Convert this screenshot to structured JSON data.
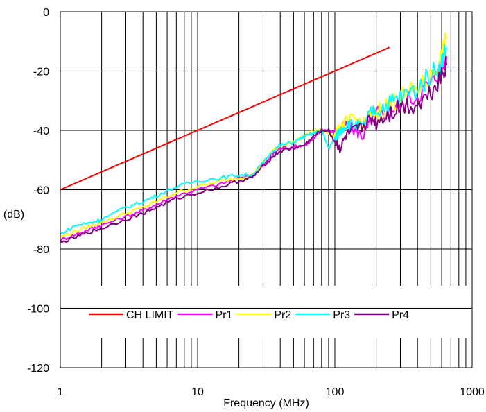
{
  "chart_data": {
    "type": "line",
    "title": "",
    "xlabel": "Frequency (MHz)",
    "ylabel": "(dB)",
    "x_scale": "log",
    "xlim": [
      1,
      1000
    ],
    "ylim": [
      -120,
      0
    ],
    "grid": true,
    "x_ticks": [
      {
        "value": 1,
        "label": "1"
      },
      {
        "value": 10,
        "label": "10"
      },
      {
        "value": 100,
        "label": "100"
      },
      {
        "value": 1000,
        "label": "1000"
      }
    ],
    "y_ticks": [
      {
        "value": 0,
        "label": "0"
      },
      {
        "value": -20,
        "label": "-20"
      },
      {
        "value": -40,
        "label": "-40"
      },
      {
        "value": -60,
        "label": "-60"
      },
      {
        "value": -80,
        "label": "-80"
      },
      {
        "value": -100,
        "label": "-100"
      },
      {
        "value": -120,
        "label": "-120"
      }
    ],
    "legend_position": "bottom",
    "series": [
      {
        "name": "CH LIMIT",
        "color": "#ff0000",
        "x": [
          1,
          250
        ],
        "y": [
          -60,
          -12
        ]
      },
      {
        "name": "Pr1",
        "color": "#ff00ff",
        "x": [
          1,
          1.3,
          1.7,
          2,
          3,
          4,
          5,
          7,
          10,
          15,
          20,
          25,
          30,
          35,
          40,
          50,
          60,
          70,
          80,
          90,
          100,
          110,
          120,
          140,
          160,
          180,
          200,
          250,
          300,
          400,
          500,
          600,
          650
        ],
        "y": [
          -77,
          -75,
          -73,
          -72,
          -69,
          -67,
          -65,
          -62,
          -60,
          -58,
          -56,
          -55,
          -52,
          -48,
          -46,
          -45.5,
          -45,
          -43,
          -40,
          -40,
          -41,
          -40,
          -38,
          -40,
          -42,
          -37,
          -35,
          -33,
          -31,
          -28,
          -24,
          -19,
          -15
        ]
      },
      {
        "name": "Pr2",
        "color": "#ffff00",
        "x": [
          1,
          1.3,
          1.7,
          2,
          3,
          4,
          5,
          7,
          10,
          15,
          20,
          25,
          30,
          35,
          40,
          50,
          60,
          70,
          80,
          90,
          100,
          110,
          120,
          140,
          160,
          180,
          200,
          250,
          300,
          400,
          500,
          600,
          650
        ],
        "y": [
          -76,
          -74,
          -72,
          -71,
          -68,
          -66,
          -64,
          -61,
          -59,
          -57,
          -56,
          -55,
          -51,
          -47,
          -45,
          -44,
          -42,
          -40,
          -40,
          -41,
          -42,
          -39,
          -37,
          -36,
          -38,
          -35,
          -34,
          -31,
          -29,
          -26,
          -22,
          -15,
          -9
        ]
      },
      {
        "name": "Pr3",
        "color": "#00ffff",
        "x": [
          1,
          1.3,
          1.7,
          2,
          3,
          4,
          5,
          7,
          10,
          15,
          20,
          25,
          30,
          35,
          40,
          50,
          60,
          70,
          80,
          90,
          100,
          110,
          120,
          140,
          160,
          180,
          200,
          250,
          300,
          400,
          500,
          600,
          650
        ],
        "y": [
          -75,
          -72,
          -71,
          -70,
          -66,
          -64,
          -62,
          -59,
          -57,
          -56,
          -55,
          -55,
          -51,
          -47,
          -45,
          -44,
          -42,
          -41,
          -40,
          -46,
          -43,
          -40,
          -38,
          -38,
          -39,
          -34,
          -33,
          -31,
          -29,
          -26,
          -21,
          -17,
          -12
        ]
      },
      {
        "name": "Pr4",
        "color": "#800080",
        "x": [
          1,
          1.3,
          1.7,
          2,
          3,
          4,
          5,
          7,
          10,
          15,
          20,
          25,
          30,
          35,
          40,
          50,
          60,
          70,
          80,
          90,
          100,
          110,
          120,
          140,
          160,
          180,
          200,
          250,
          300,
          400,
          500,
          600,
          650
        ],
        "y": [
          -78,
          -76,
          -74,
          -73,
          -70,
          -68,
          -66,
          -63,
          -61,
          -59,
          -57,
          -56,
          -52,
          -49,
          -47,
          -46,
          -45,
          -42,
          -40,
          -40,
          -44,
          -46,
          -42,
          -40,
          -39,
          -36,
          -37,
          -34,
          -32,
          -31,
          -27,
          -21,
          -18
        ]
      }
    ]
  }
}
